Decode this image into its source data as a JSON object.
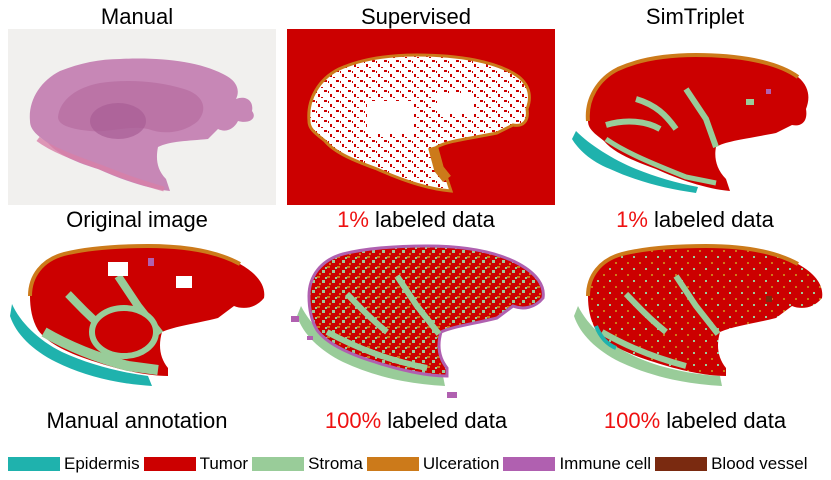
{
  "columns": [
    {
      "top_title": "Manual",
      "bottom_caption": "Original image"
    },
    {
      "top_title": "Supervised",
      "bottom_caption_pct": "1%",
      "bottom_caption_rest": " labeled data"
    },
    {
      "top_title": "SimTriplet",
      "bottom_caption_pct": "1%",
      "bottom_caption_rest": " labeled data"
    }
  ],
  "row2_captions": [
    {
      "text": "Manual annotation"
    },
    {
      "pct": "100%",
      "rest": " labeled data"
    },
    {
      "pct": "100%",
      "rest": " labeled data"
    }
  ],
  "legend": [
    {
      "label": "Epidermis",
      "color": "#1fb2ad"
    },
    {
      "label": "Tumor",
      "color": "#cc0000"
    },
    {
      "label": "Stroma",
      "color": "#99cc99"
    },
    {
      "label": "Ulceration",
      "color": "#cc7a1a"
    },
    {
      "label": "Immune cell",
      "color": "#b060b0"
    },
    {
      "label": "Blood vessel",
      "color": "#7a2a10"
    }
  ]
}
